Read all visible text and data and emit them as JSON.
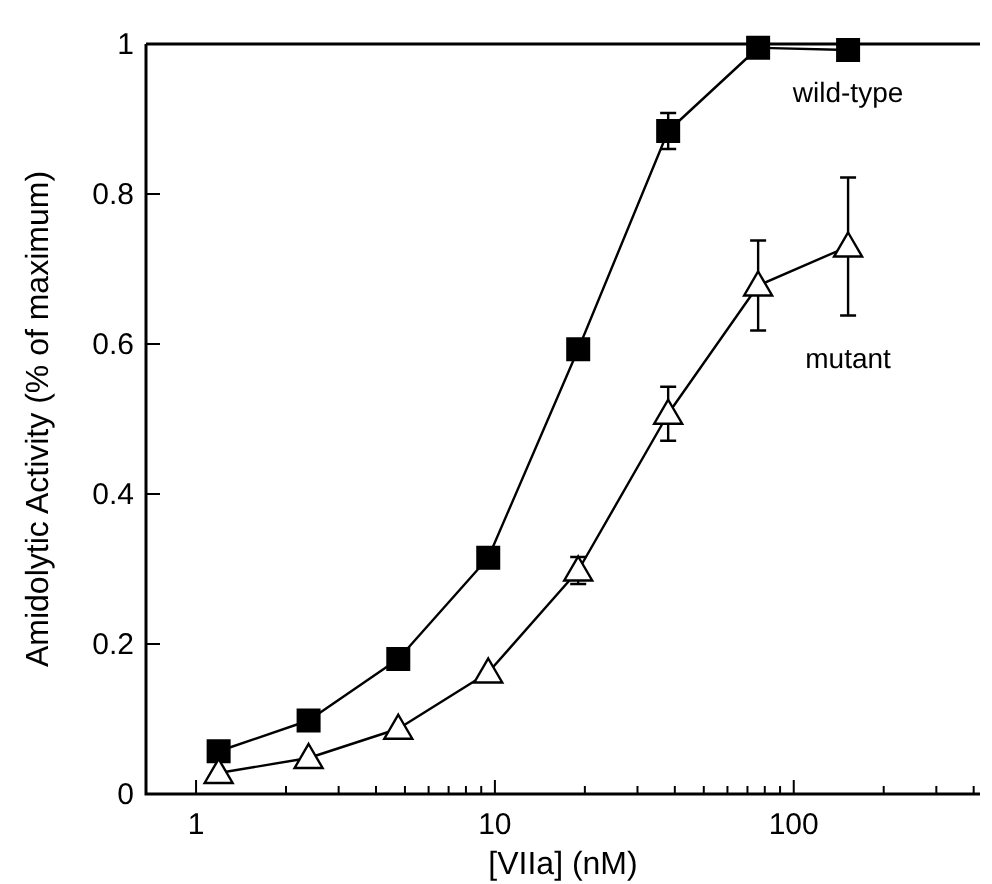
{
  "chart_data": {
    "type": "line",
    "xlabel": "[VIIa] (nM)",
    "ylabel": "Amidolytic Activity (% of maximum)",
    "log": "x",
    "xlim": [
      0.68,
      420
    ],
    "ylim": [
      0,
      1
    ],
    "xticks": [
      1,
      {
        "value": 2,
        "label": null
      },
      {
        "value": 3,
        "label": null
      },
      {
        "value": 4,
        "label": null
      },
      {
        "value": 5,
        "label": null
      },
      {
        "value": 6,
        "label": null
      },
      {
        "value": 7,
        "label": null
      },
      {
        "value": 8,
        "label": null
      },
      {
        "value": 9,
        "label": null
      },
      10,
      {
        "value": 20,
        "label": null
      },
      {
        "value": 30,
        "label": null
      },
      {
        "value": 40,
        "label": null
      },
      {
        "value": 50,
        "label": null
      },
      {
        "value": 60,
        "label": null
      },
      {
        "value": 70,
        "label": null
      },
      {
        "value": 80,
        "label": null
      },
      {
        "value": 90,
        "label": null
      },
      100,
      {
        "value": 200,
        "label": null
      },
      {
        "value": 300,
        "label": null
      },
      {
        "value": 400,
        "label": null
      }
    ],
    "yticks": [
      0,
      0.2,
      0.4,
      0.6,
      0.8,
      1
    ],
    "x": [
      1.19,
      2.38,
      4.75,
      9.5,
      19,
      38,
      76,
      152
    ],
    "series": [
      {
        "name": "wild-type",
        "color": "#000000",
        "marker": "square",
        "values": [
          0.057,
          0.098,
          0.18,
          0.315,
          0.593,
          0.884,
          0.995,
          0.992
        ],
        "errors": [
          null,
          null,
          null,
          null,
          null,
          0.024,
          null,
          null
        ]
      },
      {
        "name": "mutant",
        "color": "#000000",
        "marker": "triangle",
        "values": [
          0.028,
          0.048,
          0.087,
          0.162,
          0.298,
          0.507,
          0.678,
          0.73
        ],
        "errors": [
          null,
          null,
          null,
          null,
          0.018,
          0.036,
          0.06,
          0.092
        ]
      }
    ],
    "legend": false,
    "grid": false
  }
}
